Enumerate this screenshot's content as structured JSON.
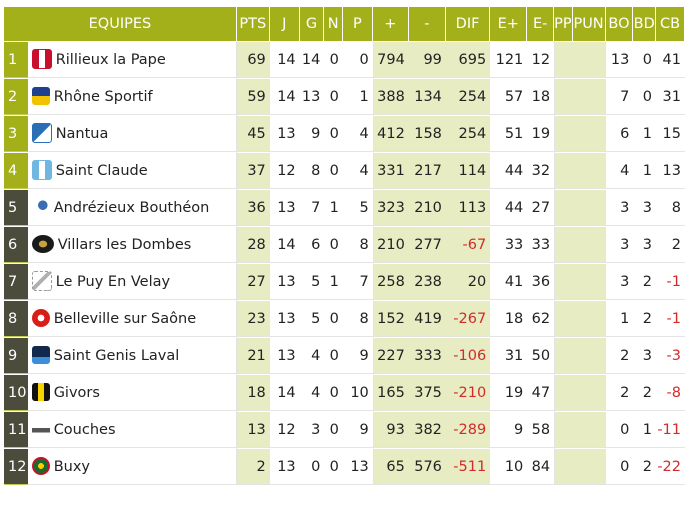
{
  "headers": [
    "EQUIPES",
    "PTS",
    "J",
    "G",
    "N",
    "P",
    "+",
    "-",
    "DIF",
    "E+",
    "E-",
    "PP",
    "PUN",
    "BO",
    "BD",
    "CB"
  ],
  "rows": [
    {
      "rank": "1",
      "team": "Rillieux la Pape",
      "logo": "rillieux-logo",
      "pts": "69",
      "j": "14",
      "g": "14",
      "n": "0",
      "p": "0",
      "plus": "794",
      "minus": "99",
      "dif": "695",
      "eplus": "121",
      "eminus": "12",
      "pp": "",
      "pun": "",
      "bo": "13",
      "bd": "0",
      "cb": "41"
    },
    {
      "rank": "2",
      "team": "Rhône Sportif",
      "logo": "rhone-sportif-logo",
      "pts": "59",
      "j": "14",
      "g": "13",
      "n": "0",
      "p": "1",
      "plus": "388",
      "minus": "134",
      "dif": "254",
      "eplus": "57",
      "eminus": "18",
      "pp": "",
      "pun": "",
      "bo": "7",
      "bd": "0",
      "cb": "31"
    },
    {
      "rank": "3",
      "team": "Nantua",
      "logo": "nantua-logo",
      "pts": "45",
      "j": "13",
      "g": "9",
      "n": "0",
      "p": "4",
      "plus": "412",
      "minus": "158",
      "dif": "254",
      "eplus": "51",
      "eminus": "19",
      "pp": "",
      "pun": "",
      "bo": "6",
      "bd": "1",
      "cb": "15"
    },
    {
      "rank": "4",
      "team": "Saint Claude",
      "logo": "saint-claude-logo",
      "pts": "37",
      "j": "12",
      "g": "8",
      "n": "0",
      "p": "4",
      "plus": "331",
      "minus": "217",
      "dif": "114",
      "eplus": "44",
      "eminus": "32",
      "pp": "",
      "pun": "",
      "bo": "4",
      "bd": "1",
      "cb": "13"
    },
    {
      "rank": "5",
      "team": "Andrézieux Bouthéon",
      "logo": "andrezieux-logo",
      "pts": "36",
      "j": "13",
      "g": "7",
      "n": "1",
      "p": "5",
      "plus": "323",
      "minus": "210",
      "dif": "113",
      "eplus": "44",
      "eminus": "27",
      "pp": "",
      "pun": "",
      "bo": "3",
      "bd": "3",
      "cb": "8"
    },
    {
      "rank": "6",
      "team": "Villars les Dombes",
      "logo": "villars-logo",
      "pts": "28",
      "j": "14",
      "g": "6",
      "n": "0",
      "p": "8",
      "plus": "210",
      "minus": "277",
      "dif": "-67",
      "eplus": "33",
      "eminus": "33",
      "pp": "",
      "pun": "",
      "bo": "3",
      "bd": "3",
      "cb": "2"
    },
    {
      "rank": "7",
      "team": "Le Puy En Velay",
      "logo": "le-puy-logo",
      "pts": "27",
      "j": "13",
      "g": "5",
      "n": "1",
      "p": "7",
      "plus": "258",
      "minus": "238",
      "dif": "20",
      "eplus": "41",
      "eminus": "36",
      "pp": "",
      "pun": "",
      "bo": "3",
      "bd": "2",
      "cb": "-1"
    },
    {
      "rank": "8",
      "team": "Belleville sur Saône",
      "logo": "belleville-logo",
      "pts": "23",
      "j": "13",
      "g": "5",
      "n": "0",
      "p": "8",
      "plus": "152",
      "minus": "419",
      "dif": "-267",
      "eplus": "18",
      "eminus": "62",
      "pp": "",
      "pun": "",
      "bo": "1",
      "bd": "2",
      "cb": "-1"
    },
    {
      "rank": "9",
      "team": "Saint Genis Laval",
      "logo": "saint-genis-logo",
      "pts": "21",
      "j": "13",
      "g": "4",
      "n": "0",
      "p": "9",
      "plus": "227",
      "minus": "333",
      "dif": "-106",
      "eplus": "31",
      "eminus": "50",
      "pp": "",
      "pun": "",
      "bo": "2",
      "bd": "3",
      "cb": "-3"
    },
    {
      "rank": "10",
      "team": "Givors",
      "logo": "givors-logo",
      "pts": "18",
      "j": "14",
      "g": "4",
      "n": "0",
      "p": "10",
      "plus": "165",
      "minus": "375",
      "dif": "-210",
      "eplus": "19",
      "eminus": "47",
      "pp": "",
      "pun": "",
      "bo": "2",
      "bd": "2",
      "cb": "-8"
    },
    {
      "rank": "11",
      "team": "Couches",
      "logo": "couches-logo",
      "pts": "13",
      "j": "12",
      "g": "3",
      "n": "0",
      "p": "9",
      "plus": "93",
      "minus": "382",
      "dif": "-289",
      "eplus": "9",
      "eminus": "58",
      "pp": "",
      "pun": "",
      "bo": "0",
      "bd": "1",
      "cb": "-11"
    },
    {
      "rank": "12",
      "team": "Buxy",
      "logo": "buxy-logo",
      "pts": "2",
      "j": "13",
      "g": "0",
      "n": "0",
      "p": "13",
      "plus": "65",
      "minus": "576",
      "dif": "-511",
      "eplus": "10",
      "eminus": "84",
      "pp": "",
      "pun": "",
      "bo": "0",
      "bd": "2",
      "cb": "-22"
    }
  ],
  "colors": {
    "header": "#a4b01a",
    "rank_dark": "#4c4c3c",
    "shade": "#e7ecc3",
    "negative": "#d42a2a"
  }
}
